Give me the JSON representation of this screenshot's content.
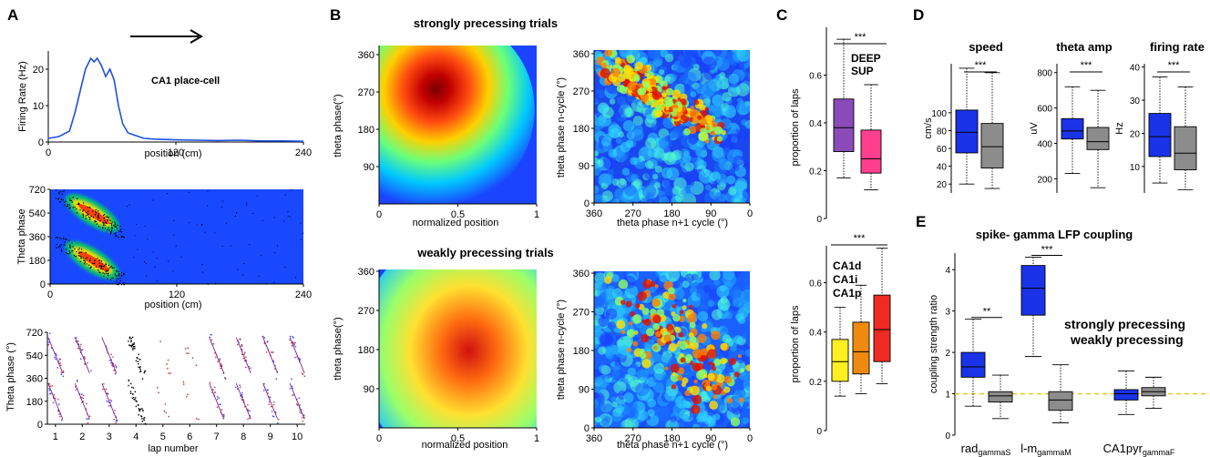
{
  "panels": {
    "A": "A",
    "B": "B",
    "C": "C",
    "D": "D",
    "E": "E"
  },
  "colors": {
    "blue_line": "#1f4fe0",
    "deep": "#8a4bb8",
    "sup": "#ff3e8e",
    "ca1d": "#ffee22",
    "ca1i": "#ef8a10",
    "ca1p": "#ef2a22",
    "strong": "#1a33e8",
    "weak": "#8c8c8c",
    "dashed_line": "#e8c200",
    "heat_bg": "#1a44ff"
  },
  "panelA": {
    "cell_label": "CA1 place-cell",
    "top": {
      "ylabel": "Firing Rate (Hz)",
      "xlabel": "position (cm)",
      "yticks": [
        "0",
        "10",
        "20"
      ],
      "xticks": [
        "0",
        "120",
        "240"
      ]
    },
    "mid": {
      "ylabel": "Theta phase",
      "xlabel": "position (cm)",
      "yticks": [
        "720",
        "540",
        "360",
        "180",
        "0"
      ],
      "xticks": [
        "0",
        "120",
        "240"
      ]
    },
    "bottom": {
      "ylabel": "Theta phase (°)",
      "xlabel": "lap number",
      "yticks": [
        "720",
        "540",
        "360",
        "180",
        "0"
      ],
      "xticks": [
        "1",
        "2",
        "3",
        "4",
        "5",
        "6",
        "7",
        "8",
        "9",
        "10"
      ]
    }
  },
  "panelB": {
    "title_strong": "strongly precessing  trials",
    "title_weak": "weakly precessing trials",
    "map1": {
      "ylabel": "theta phase(°)",
      "xlabel": "normalized position",
      "yticks": [
        "360",
        "270",
        "180",
        "90"
      ],
      "xticks": [
        "0",
        "0.5",
        "1"
      ]
    },
    "map2": {
      "ylabel": "theta phase n-cycle (°)",
      "xlabel": "theta phase n+1 cycle (°)",
      "yticks": [
        "360",
        "270",
        "180",
        "90",
        "0"
      ],
      "xticks": [
        "360",
        "270",
        "180",
        "90",
        "0"
      ]
    },
    "map3": {
      "ylabel": "theta phase(°)",
      "xlabel": "normalized position",
      "yticks": [
        "360",
        "270",
        "180",
        "90"
      ],
      "xticks": [
        "0",
        "0.5",
        "1"
      ]
    },
    "map4": {
      "ylabel": "theta phase n-cycle (°)",
      "xlabel": "theta phase n+1 cycle (°)",
      "yticks": [
        "360",
        "270",
        "180",
        "90",
        "0"
      ],
      "xticks": [
        "360",
        "270",
        "180",
        "90",
        "0"
      ]
    }
  },
  "chart_data": [
    {
      "type": "line",
      "title": "CA1 place-cell",
      "xlabel": "position (cm)",
      "ylabel": "Firing Rate (Hz)",
      "xlim": [
        0,
        240
      ],
      "ylim": [
        0,
        25
      ],
      "x": [
        0,
        10,
        20,
        25,
        30,
        35,
        40,
        43,
        46,
        50,
        54,
        58,
        62,
        66,
        70,
        75,
        80,
        90,
        100,
        120,
        140,
        160,
        180,
        200,
        220,
        240
      ],
      "y": [
        1,
        1.5,
        3,
        8,
        14,
        20,
        23,
        22,
        23,
        21,
        18,
        20,
        17,
        10,
        5,
        2.5,
        2,
        1,
        0.8,
        0.6,
        0.5,
        0.4,
        0.5,
        0.3,
        0.3,
        0.2
      ]
    },
    {
      "type": "box",
      "ylabel": "proportion of laps",
      "ylim": [
        0,
        0.8
      ],
      "significance": "***",
      "legend": [
        "DEEP",
        "SUP"
      ],
      "series": [
        {
          "name": "DEEP",
          "whisker_low": 0.17,
          "q1": 0.28,
          "median": 0.38,
          "q3": 0.5,
          "whisker_high": 0.75
        },
        {
          "name": "SUP",
          "whisker_low": 0.12,
          "q1": 0.19,
          "median": 0.25,
          "q3": 0.37,
          "whisker_high": 0.56
        }
      ],
      "yticks": [
        "0",
        "0.2",
        "0.4",
        "0.6"
      ]
    },
    {
      "type": "box",
      "ylabel": "proportion of laps",
      "ylim": [
        0,
        0.75
      ],
      "significance": "***",
      "legend": [
        "CA1d",
        "CA1i",
        "CA1p"
      ],
      "series": [
        {
          "name": "CA1d",
          "whisker_low": 0.14,
          "q1": 0.2,
          "median": 0.28,
          "q3": 0.37,
          "whisker_high": 0.5
        },
        {
          "name": "CA1i",
          "whisker_low": 0.15,
          "q1": 0.23,
          "median": 0.32,
          "q3": 0.44,
          "whisker_high": 0.59
        },
        {
          "name": "CA1p",
          "whisker_low": 0.19,
          "q1": 0.28,
          "median": 0.41,
          "q3": 0.55,
          "whisker_high": 0.74
        }
      ],
      "yticks": [
        "0",
        "0.2",
        "0.4",
        "0.6"
      ]
    },
    {
      "type": "box",
      "title": "speed",
      "ylabel": "cm/s",
      "ylim": [
        10,
        155
      ],
      "significance": "***",
      "series": [
        {
          "name": "strongly precessing",
          "whisker_low": 20,
          "q1": 55,
          "median": 78,
          "q3": 103,
          "whisker_high": 150
        },
        {
          "name": "weakly precessing",
          "whisker_low": 15,
          "q1": 38,
          "median": 62,
          "q3": 88,
          "whisker_high": 145
        }
      ],
      "yticks": [
        "20",
        "40",
        "60",
        "80",
        "100"
      ]
    },
    {
      "type": "box",
      "title": "theta amp",
      "ylabel": "uV",
      "ylim": [
        120,
        850
      ],
      "significance": "***",
      "series": [
        {
          "name": "strongly precessing",
          "whisker_low": 230,
          "q1": 425,
          "median": 470,
          "q3": 540,
          "whisker_high": 720
        },
        {
          "name": "weakly precessing",
          "whisker_low": 150,
          "q1": 365,
          "median": 410,
          "q3": 490,
          "whisker_high": 700
        }
      ],
      "yticks": [
        "200",
        "400",
        "600",
        "800"
      ]
    },
    {
      "type": "box",
      "title": "firing rate",
      "ylabel": "Hz",
      "ylim": [
        2,
        41
      ],
      "significance": "***",
      "series": [
        {
          "name": "strongly precessing",
          "whisker_low": 5,
          "q1": 13,
          "median": 19,
          "q3": 26,
          "whisker_high": 37
        },
        {
          "name": "weakly precessing",
          "whisker_low": 3,
          "q1": 9,
          "median": 14,
          "q3": 22,
          "whisker_high": 34
        }
      ],
      "yticks": [
        "10",
        "20",
        "30",
        "40"
      ]
    },
    {
      "type": "box",
      "title": "spike- gamma LFP coupling",
      "ylabel": "coupling strength ratio",
      "ylim": [
        0,
        4.4
      ],
      "reference_line": 1,
      "legend": [
        "strongly precessing",
        "weakly precessing"
      ],
      "categories": [
        {
          "label": "rad",
          "sub": "gammaS",
          "significance": "**"
        },
        {
          "label": "l-m",
          "sub": "gammaM",
          "significance": "***"
        },
        {
          "label": "CA1pyr",
          "sub": "gammaF",
          "significance": ""
        }
      ],
      "series": [
        {
          "name": "strongly precessing",
          "boxes": [
            {
              "whisker_low": 0.7,
              "q1": 1.4,
              "median": 1.65,
              "q3": 2.0,
              "whisker_high": 2.8
            },
            {
              "whisker_low": 1.9,
              "q1": 2.9,
              "median": 3.55,
              "q3": 4.1,
              "whisker_high": 4.3
            },
            {
              "whisker_low": 0.5,
              "q1": 0.85,
              "median": 1.0,
              "q3": 1.1,
              "whisker_high": 1.55
            }
          ]
        },
        {
          "name": "weakly precessing",
          "boxes": [
            {
              "whisker_low": 0.4,
              "q1": 0.8,
              "median": 0.95,
              "q3": 1.05,
              "whisker_high": 1.45
            },
            {
              "whisker_low": 0.3,
              "q1": 0.6,
              "median": 0.85,
              "q3": 1.05,
              "whisker_high": 1.7
            },
            {
              "whisker_low": 0.65,
              "q1": 0.95,
              "median": 1.05,
              "q3": 1.15,
              "whisker_high": 1.4
            }
          ]
        }
      ],
      "yticks": [
        "0",
        "1",
        "2",
        "3",
        "4"
      ]
    }
  ]
}
